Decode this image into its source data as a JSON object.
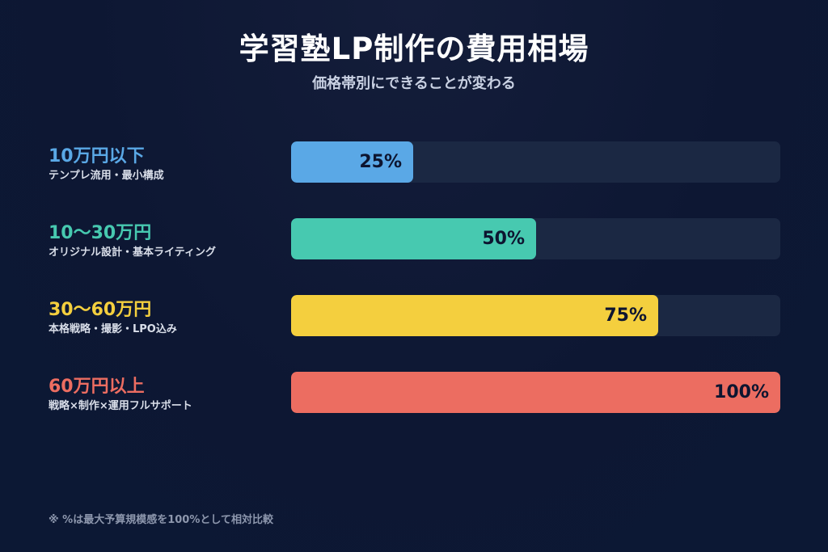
{
  "title": "学習塾LP制作の費用相場",
  "subtitle": "価格帯別にできることが変わる",
  "note": "※ %は最大予算規模感を100%として相対比較",
  "chart_data": {
    "type": "bar",
    "orientation": "horizontal",
    "xlim": [
      0,
      100
    ],
    "grid": false,
    "categories": [
      "10万円以下",
      "10〜30万円",
      "30〜60万円",
      "60万円以上"
    ],
    "descriptions": [
      "テンプレ流用・最小構成",
      "オリジナル設計・基本ライティング",
      "本格戦略・撮影・LPO込み",
      "戦略×制作×運用フルサポート"
    ],
    "values": [
      25,
      50,
      75,
      100
    ],
    "value_labels": [
      "25%",
      "50%",
      "75%",
      "100%"
    ],
    "colors": [
      "#5aa8e6",
      "#47c9b0",
      "#f4cf3e",
      "#ec6d61"
    ]
  },
  "rows": [
    {
      "label": "10万円以下",
      "sub": "テンプレ流用・最小構成",
      "pct": "25%"
    },
    {
      "label": "10〜30万円",
      "sub": "オリジナル設計・基本ライティング",
      "pct": "50%"
    },
    {
      "label": "30〜60万円",
      "sub": "本格戦略・撮影・LPO込み",
      "pct": "75%"
    },
    {
      "label": "60万円以上",
      "sub": "戦略×制作×運用フルサポート",
      "pct": "100%"
    }
  ]
}
